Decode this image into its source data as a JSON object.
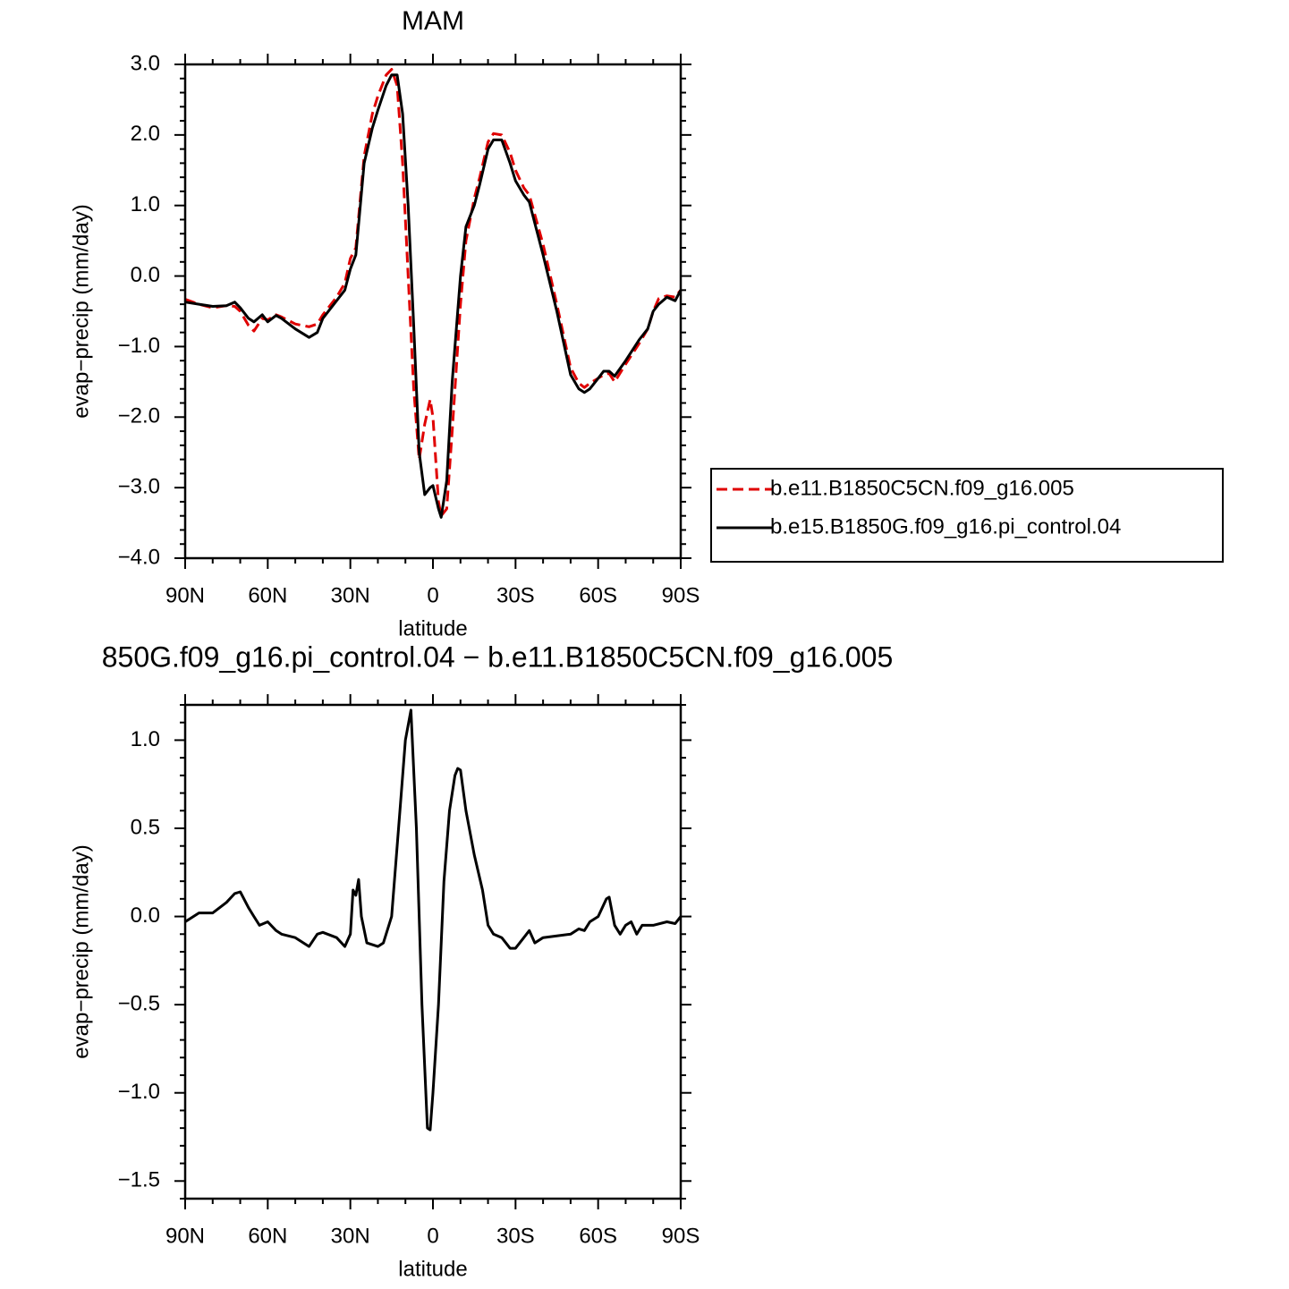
{
  "chart_data": [
    {
      "type": "line",
      "title": "MAM",
      "xlabel": "latitude",
      "ylabel": "evap−precip (mm/day)",
      "x": [
        90,
        85,
        80,
        75,
        72,
        70,
        67,
        65,
        62,
        60,
        57,
        55,
        50,
        45,
        42,
        40,
        35,
        32,
        30,
        28,
        25,
        22,
        20,
        17,
        15,
        13,
        11,
        9,
        7,
        5,
        3,
        1,
        0,
        -2,
        -3,
        -5,
        -7,
        -10,
        -12,
        -15,
        -17,
        -20,
        -22,
        -25,
        -28,
        -30,
        -33,
        -35,
        -40,
        -45,
        -50,
        -53,
        -55,
        -57,
        -60,
        -62,
        -64,
        -66,
        -70,
        -75,
        -78,
        -80,
        -82,
        -85,
        -88,
        -90
      ],
      "series": [
        {
          "name": "b.e11.B1850C5CN.f09_g16.005",
          "color": "#e00000",
          "linestyle": "dashed",
          "values": [
            -0.33,
            -0.4,
            -0.45,
            -0.42,
            -0.43,
            -0.5,
            -0.7,
            -0.78,
            -0.6,
            -0.62,
            -0.55,
            -0.58,
            -0.68,
            -0.72,
            -0.68,
            -0.55,
            -0.3,
            -0.1,
            0.25,
            0.4,
            1.7,
            2.3,
            2.55,
            2.85,
            2.93,
            2.7,
            1.6,
            0.0,
            -1.6,
            -2.6,
            -2.1,
            -1.75,
            -2.0,
            -3.2,
            -3.4,
            -3.3,
            -2.2,
            -0.4,
            0.5,
            1.1,
            1.4,
            1.9,
            2.02,
            2.0,
            1.75,
            1.5,
            1.25,
            1.15,
            0.45,
            -0.4,
            -1.3,
            -1.52,
            -1.58,
            -1.52,
            -1.45,
            -1.4,
            -1.38,
            -1.5,
            -1.25,
            -0.95,
            -0.75,
            -0.5,
            -0.32,
            -0.28,
            -0.3,
            -0.2
          ]
        },
        {
          "name": "b.e15.B1850G.f09_g16.pi_control.04",
          "color": "#000000",
          "linestyle": "solid",
          "values": [
            -0.37,
            -0.4,
            -0.43,
            -0.42,
            -0.37,
            -0.45,
            -0.6,
            -0.65,
            -0.55,
            -0.65,
            -0.56,
            -0.6,
            -0.75,
            -0.87,
            -0.8,
            -0.6,
            -0.35,
            -0.2,
            0.1,
            0.3,
            1.6,
            2.1,
            2.35,
            2.7,
            2.85,
            2.85,
            2.3,
            1.0,
            -0.7,
            -2.5,
            -3.1,
            -3.0,
            -2.97,
            -3.3,
            -3.42,
            -2.9,
            -1.5,
            0.0,
            0.7,
            1.0,
            1.3,
            1.8,
            1.93,
            1.93,
            1.6,
            1.35,
            1.15,
            1.05,
            0.3,
            -0.5,
            -1.4,
            -1.6,
            -1.65,
            -1.6,
            -1.45,
            -1.35,
            -1.35,
            -1.42,
            -1.2,
            -0.9,
            -0.75,
            -0.5,
            -0.4,
            -0.3,
            -0.35,
            -0.2
          ]
        }
      ],
      "xlim": [
        90,
        -90
      ],
      "xticks": [
        {
          "value": 90,
          "label": "90N"
        },
        {
          "value": 60,
          "label": "60N"
        },
        {
          "value": 30,
          "label": "30N"
        },
        0,
        {
          "value": -30,
          "label": "30S"
        },
        {
          "value": -60,
          "label": "60S"
        },
        {
          "value": -90,
          "label": "90S"
        }
      ],
      "ylim": [
        -4,
        3
      ],
      "yticks": [
        {
          "value": 3,
          "label": "3.0"
        },
        {
          "value": 2,
          "label": "2.0"
        },
        {
          "value": 1,
          "label": "1.0"
        },
        {
          "value": 0,
          "label": "0.0"
        },
        {
          "value": -1,
          "label": "−1.0"
        },
        {
          "value": -2,
          "label": "−2.0"
        },
        {
          "value": -3,
          "label": "−3.0"
        },
        {
          "value": -4,
          "label": "−4.0"
        }
      ]
    },
    {
      "type": "line",
      "title": "850G.f09_g16.pi_control.04 − b.e11.B1850C5CN.f09_g16.005",
      "xlabel": "latitude",
      "ylabel": "evap−precip (mm/day)",
      "x": [
        90,
        85,
        80,
        75,
        72,
        70,
        67,
        65,
        63,
        60,
        57,
        55,
        50,
        45,
        42,
        40,
        35,
        32,
        30,
        29,
        28,
        27,
        26,
        24,
        20,
        18,
        15,
        12,
        10,
        8,
        6,
        4,
        2,
        1,
        0,
        -2,
        -4,
        -6,
        -8,
        -9,
        -10,
        -12,
        -15,
        -18,
        -20,
        -22,
        -25,
        -28,
        -30,
        -33,
        -35,
        -37,
        -40,
        -45,
        -50,
        -53,
        -55,
        -57,
        -60,
        -63,
        -64,
        -66,
        -68,
        -70,
        -72,
        -74,
        -76,
        -80,
        -85,
        -88,
        -90
      ],
      "series": [
        {
          "color": "#000000",
          "linestyle": "solid",
          "values": [
            -0.03,
            0.02,
            0.02,
            0.08,
            0.13,
            0.14,
            0.05,
            0.0,
            -0.05,
            -0.03,
            -0.08,
            -0.1,
            -0.12,
            -0.17,
            -0.1,
            -0.09,
            -0.12,
            -0.17,
            -0.1,
            0.15,
            0.12,
            0.21,
            0.0,
            -0.15,
            -0.17,
            -0.15,
            0.0,
            0.6,
            1.0,
            1.17,
            0.5,
            -0.5,
            -1.2,
            -1.21,
            -1.0,
            -0.5,
            0.2,
            0.6,
            0.8,
            0.84,
            0.83,
            0.6,
            0.35,
            0.15,
            -0.05,
            -0.1,
            -0.12,
            -0.18,
            -0.18,
            -0.12,
            -0.08,
            -0.15,
            -0.12,
            -0.11,
            -0.1,
            -0.07,
            -0.08,
            -0.03,
            0.0,
            0.1,
            0.11,
            -0.05,
            -0.1,
            -0.05,
            -0.03,
            -0.1,
            -0.05,
            -0.05,
            -0.03,
            -0.04,
            0.0
          ]
        }
      ],
      "xlim": [
        90,
        -90
      ],
      "xticks": [
        {
          "value": 90,
          "label": "90N"
        },
        {
          "value": 60,
          "label": "60N"
        },
        {
          "value": 30,
          "label": "30N"
        },
        0,
        {
          "value": -30,
          "label": "30S"
        },
        {
          "value": -60,
          "label": "60S"
        },
        {
          "value": -90,
          "label": "90S"
        }
      ],
      "ylim": [
        -1.6,
        1.2
      ],
      "yticks": [
        {
          "value": 1,
          "label": "1.0"
        },
        {
          "value": 0.5,
          "label": "0.5"
        },
        {
          "value": 0,
          "label": "0.0"
        },
        {
          "value": -0.5,
          "label": "−0.5"
        },
        {
          "value": -1,
          "label": "−1.0"
        },
        {
          "value": -1.5,
          "label": "−1.5"
        }
      ]
    }
  ]
}
